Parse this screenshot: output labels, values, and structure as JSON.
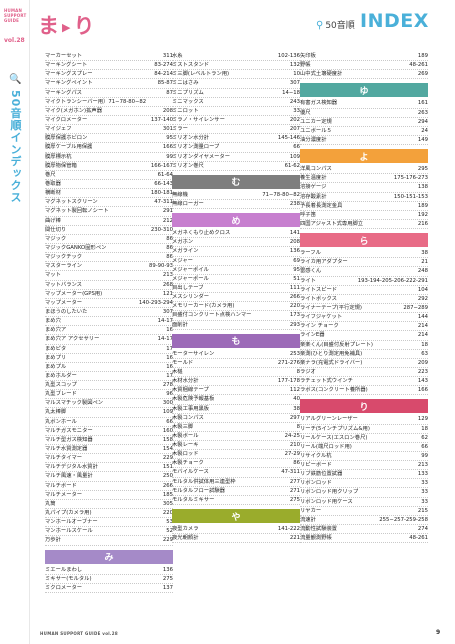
{
  "sidebar": {
    "guide_lines": [
      "HUMAN",
      "SUPPORT",
      "GUIDE"
    ],
    "vol": "vol.28",
    "title": "50音順インデックス"
  },
  "header": {
    "kana": "ま",
    "kana2": "り",
    "mode": "50音順",
    "index": "INDEX"
  },
  "footer": {
    "text": "HUMAN SUPPORT GUIDE vol.28",
    "page": "9"
  },
  "col1": {
    "ma": [
      [
        "マーカーセット",
        "311"
      ],
      [
        "マーキングシート",
        "83-274"
      ],
      [
        "マーキングスプレー",
        "84-214"
      ],
      [
        "マーキングペイント",
        "85-87"
      ],
      [
        "マーキングパス",
        "87"
      ],
      [
        "マイクトランシーバー用）71−78-80−82",
        ""
      ],
      [
        "マイク(メガホン)拡声器",
        "208"
      ],
      [
        "マイクロメーター",
        "137-140"
      ],
      [
        "マイジェフ",
        "301"
      ],
      [
        "膜厚保護ホビロン",
        "95"
      ],
      [
        "膜厚ケーブル用保護",
        "166"
      ],
      [
        "膜厚標示杭",
        "99"
      ],
      [
        "膜厚物保管箱",
        "166-167"
      ],
      [
        "巻尺",
        "61-64"
      ],
      [
        "巻取器",
        "66-143"
      ],
      [
        "横断材",
        "180-181"
      ],
      [
        "マグネットスクリーン",
        "47-311"
      ],
      [
        "マグネット製回転ノシート",
        "291"
      ],
      [
        "曲げ棒",
        "212"
      ],
      [
        "間仕切り",
        "230-310"
      ],
      [
        "マジック",
        "86"
      ],
      [
        "マジックGANKO固形ペン",
        "86"
      ],
      [
        "マジックチック",
        "86"
      ],
      [
        "マスターライン",
        "89-90-93"
      ],
      [
        "マット",
        "213"
      ],
      [
        "マットバランス",
        "268"
      ],
      [
        "マップメーター(GPS用)",
        "121"
      ],
      [
        "マップメーター",
        "140-293-294"
      ],
      [
        "まほうのしたいた",
        "307"
      ],
      [
        "まめ穴",
        "14-17"
      ],
      [
        "まめ穴ア",
        "16"
      ],
      [
        "まめ穴ア アクセサリー",
        "14-17"
      ],
      [
        "まめピタ",
        "17"
      ],
      [
        "まめプリ",
        "16"
      ],
      [
        "まめプル",
        "16"
      ],
      [
        "まめホルダー",
        "17"
      ],
      [
        "丸型スコップ",
        "278"
      ],
      [
        "丸型ブレード",
        "96"
      ],
      [
        "マルスマチック製図ペン",
        "300"
      ],
      [
        "丸太棒脚",
        "109"
      ],
      [
        "丸ボンホール",
        "66"
      ],
      [
        "マルチガスモニター",
        "160"
      ],
      [
        "マルチ型ガス検知器",
        "158"
      ],
      [
        "マルチ水質測定器",
        "154"
      ],
      [
        "マルチタイマー",
        "229"
      ],
      [
        "マルチデジタル水質計",
        "151"
      ],
      [
        "マルチ風速・風量計",
        "250"
      ],
      [
        "マルチボード",
        "266"
      ],
      [
        "マルチメーター",
        "185"
      ],
      [
        "丸筒",
        "305"
      ],
      [
        "丸パイプ(カメラ用)",
        "220"
      ],
      [
        "マンホールオーブナー",
        "53"
      ],
      [
        "マンホールスケール",
        "52"
      ],
      [
        "万歩計",
        "229"
      ]
    ],
    "mi": [
      [
        "ミエールまわし",
        "136"
      ],
      [
        "ミキサー(モルタル)",
        "275"
      ],
      [
        "ミクロメーター",
        "137"
      ]
    ]
  },
  "col2": {
    "ma": [
      [
        "水糸",
        "102-136"
      ],
      [
        "ミストスタンド",
        "132"
      ],
      [
        "ミ三脚(レベルトラン用)",
        "10"
      ],
      [
        "ミニはさみ",
        "307"
      ],
      [
        "ミニプリズム",
        "14−18"
      ],
      [
        "ミニマックス",
        "243"
      ],
      [
        "ミニロット",
        "33"
      ],
      [
        "ミラノ・サイレンサー",
        "202"
      ],
      [
        "ミラー",
        "207"
      ],
      [
        "ミリオン水分計",
        "145-146"
      ],
      [
        "ミリオン測量ロープ",
        "66"
      ],
      [
        "ミリオンダイヤメーター",
        "109"
      ],
      [
        "ミリオン巻尺",
        "61-62"
      ]
    ],
    "mu": [
      [
        "無線機",
        "71−78-80−82"
      ],
      [
        "無線ローガー",
        "238"
      ]
    ],
    "me": [
      [
        "メガネくもり止めクロス",
        "141"
      ],
      [
        "メガホン",
        "208"
      ],
      [
        "メガライン",
        "136"
      ],
      [
        "メジャー",
        "69"
      ],
      [
        "メジャーポイル",
        "95"
      ],
      [
        "メジャーポール",
        "51"
      ],
      [
        "目出しテープ",
        "111"
      ],
      [
        "メスシリンダー",
        "266"
      ],
      [
        "メモリーカード(カメラ用)",
        "220"
      ],
      [
        "目盛付コンクリート点検ハンマー",
        "173"
      ],
      [
        "面削計",
        "293"
      ]
    ],
    "mo": [
      [
        "モーターサイレン",
        "253"
      ],
      [
        "モールド",
        "271-276"
      ],
      [
        "木槌",
        "8"
      ],
      [
        "木材水分計",
        "177-178"
      ],
      [
        "木質梱線テープ",
        "112"
      ],
      [
        "木製危険予報基板",
        "40"
      ],
      [
        "木製工事用黒板",
        "38"
      ],
      [
        "木製コンパス",
        "297"
      ],
      [
        "木製三脚",
        "8"
      ],
      [
        "木製ボール",
        "24-25"
      ],
      [
        "木製レーキ",
        "210"
      ],
      [
        "木製ロッド",
        "27-29"
      ],
      [
        "木製チョーク",
        "86"
      ],
      [
        "モバイルケース",
        "47-311"
      ],
      [
        "モルタル供試体用三連型枠",
        "277"
      ],
      [
        "モルタルフロー試験器",
        "271"
      ],
      [
        "モルタルミキサー",
        "275"
      ]
    ],
    "ya": [
      [
        "夜型カメラ",
        "141-222"
      ],
      [
        "夜光朝顔計",
        "221"
      ]
    ]
  },
  "col3": {
    "ya": [
      [
        "矢印板",
        "189"
      ],
      [
        "野帳",
        "48-261"
      ],
      [
        "山中式土壌硬度計",
        "269"
      ]
    ],
    "yu": [
      [
        "有害ガス検知器",
        "161"
      ],
      [
        "優尺",
        "263"
      ],
      [
        "ユニカー定規",
        "294"
      ],
      [
        "ユニボール５",
        "24"
      ],
      [
        "油分濃度計",
        "149"
      ]
    ],
    "yo": [
      [
        "洋風コンパス",
        "295"
      ],
      [
        "養生温度計",
        "175-176-273"
      ],
      [
        "溶接ゲージ",
        "138"
      ],
      [
        "溶存酸素計",
        "150-151-153"
      ],
      [
        "予長着長測定金具",
        "189"
      ],
      [
        "呼子笛",
        "192"
      ],
      [
        "四国アジャスト式専用脚立",
        "216"
      ]
    ],
    "ra": [
      [
        "ラーフル",
        "38"
      ],
      [
        "ライカ用アダプター",
        "21"
      ],
      [
        "雷感くん",
        "248"
      ],
      [
        "ライト",
        "193-194-205-206-222-291"
      ],
      [
        "ライトスピード",
        "104"
      ],
      [
        "ライトボックス",
        "292"
      ],
      [
        "ライナーテープ(平行定規)",
        "287−289"
      ],
      [
        "ライフジャケット",
        "144"
      ],
      [
        "ライン チョーク",
        "214"
      ],
      [
        "ラインE器",
        "214"
      ],
      [
        "楽楽くん(目盛付反射プレート)",
        "18"
      ],
      [
        "楽測(ひとり測定用免補具)",
        "63"
      ],
      [
        "楽ナラ(充電式ドライバー)",
        "209"
      ],
      [
        "ラジオ",
        "223"
      ],
      [
        "ラチェット式ウインチ",
        "143"
      ],
      [
        "ラボス(コンクリート養所器)",
        "166"
      ]
    ],
    "ri": [
      [
        "リアルグリーンレーザー",
        "129"
      ],
      [
        "リーチ(5インチプリズム&用)",
        "18"
      ],
      [
        "リールケース(エスロン巻尺)",
        "62"
      ],
      [
        "リール(端尺ロッド用)",
        "66"
      ],
      [
        "リサイクル杭",
        "99"
      ],
      [
        "リピーボード",
        "213"
      ],
      [
        "リブ鉄筋位置試器",
        "133"
      ],
      [
        "リボンロッド",
        "33"
      ],
      [
        "リボンロッド用クリップ",
        "33"
      ],
      [
        "リボンロッド用ケース",
        "33"
      ],
      [
        "リヤカー",
        "215"
      ],
      [
        "流速計",
        "255−257-259-258"
      ],
      [
        "流動性試験装置",
        "274"
      ],
      [
        "流量観測野帳",
        "48-261"
      ]
    ]
  },
  "bands": {
    "mu": "む",
    "me": "め",
    "mo": "も",
    "ya": "や",
    "yu": "ゆ",
    "yo": "よ",
    "ra": "ら",
    "ri": "り",
    "mi": "み"
  },
  "colors": {
    "accent_pink": "#e0608a",
    "accent_blue": "#4ab0d9"
  }
}
